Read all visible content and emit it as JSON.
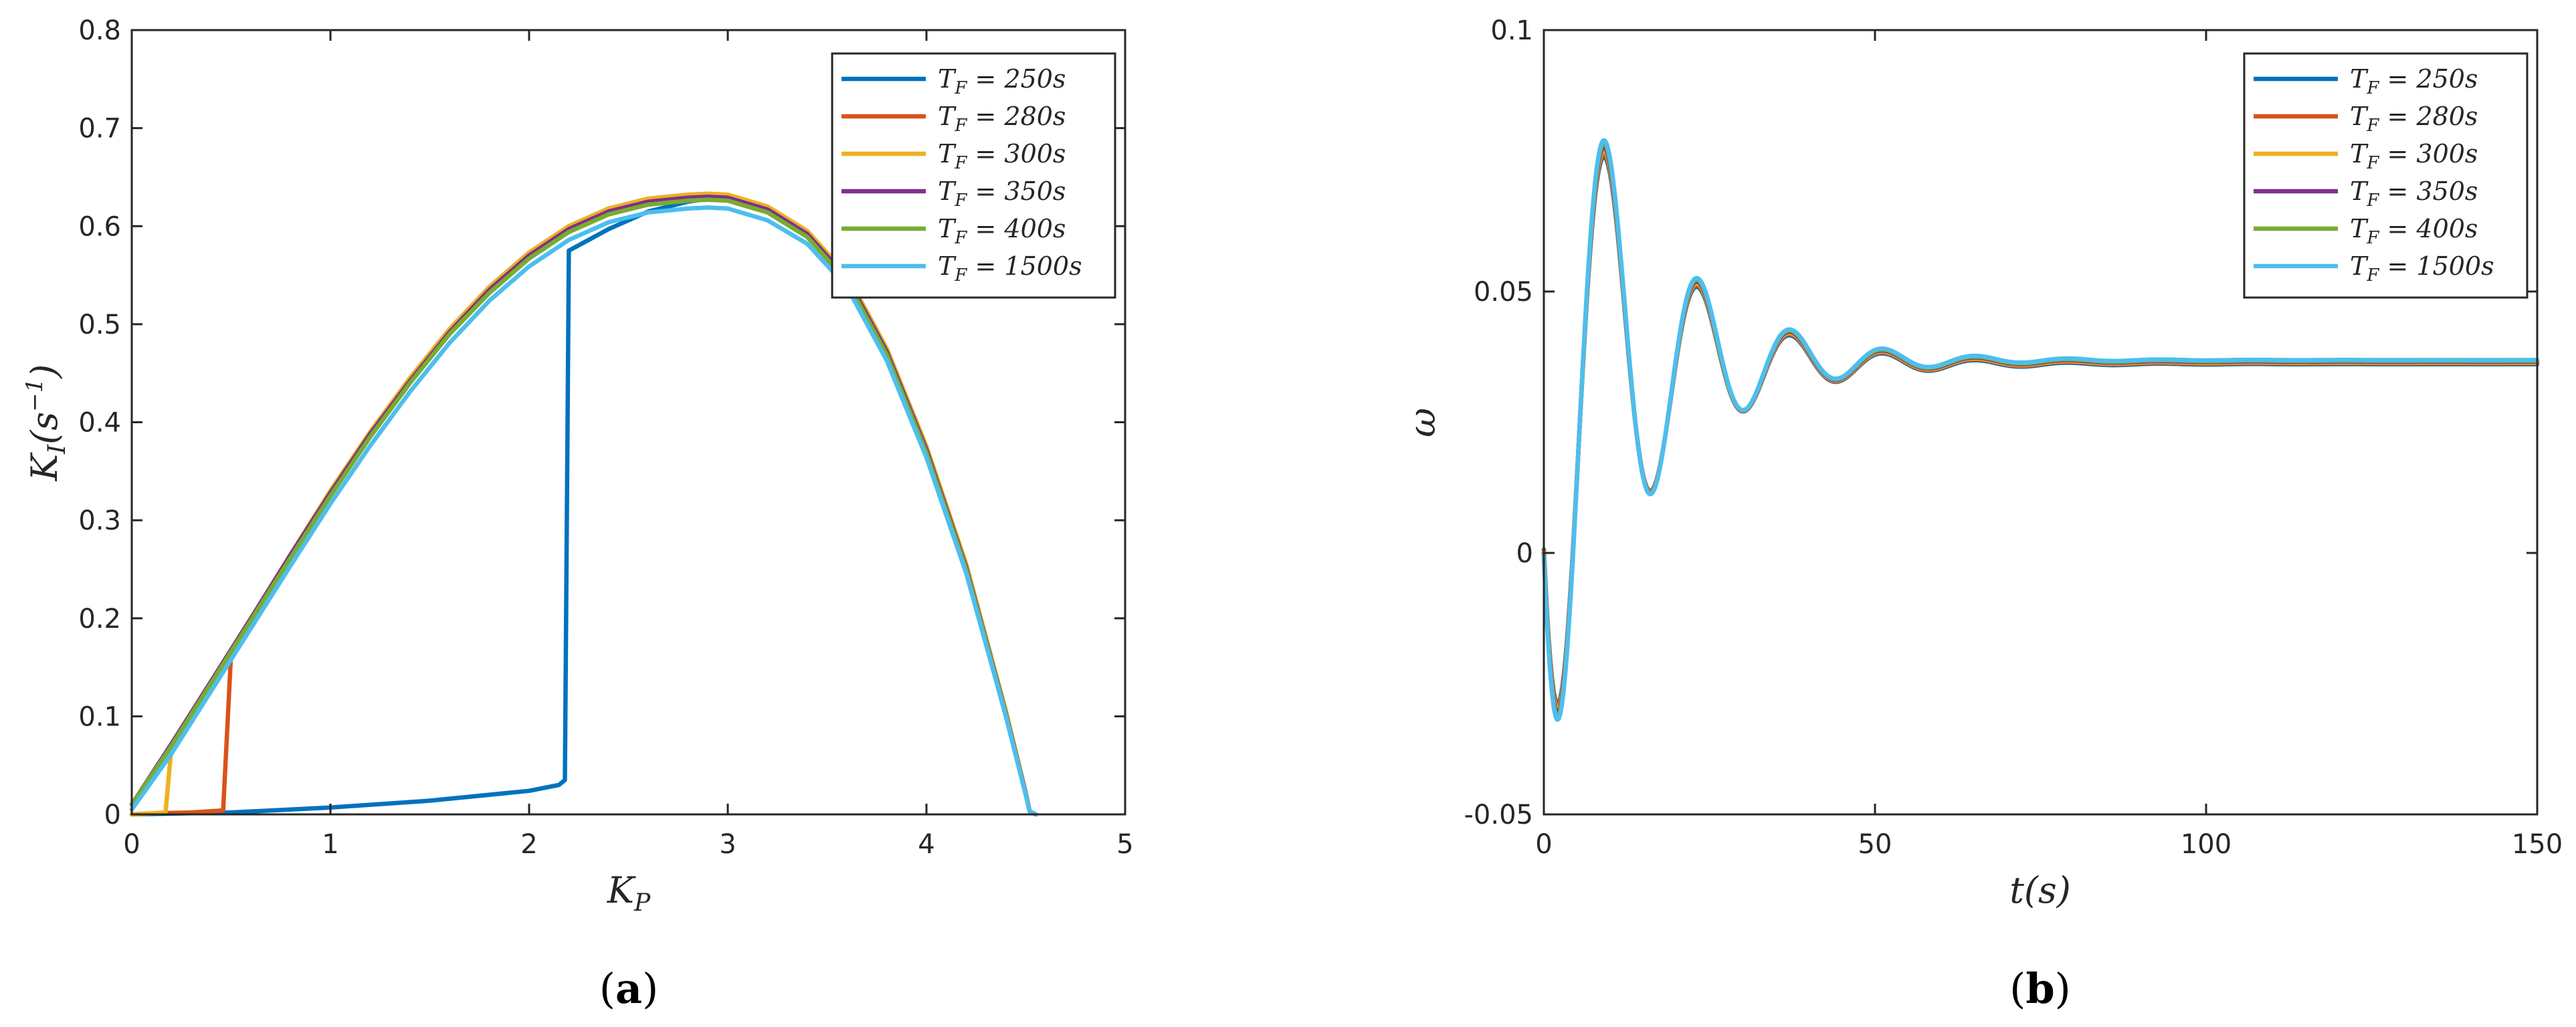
{
  "chart_data": [
    {
      "type": "line",
      "panel_label": "(a)",
      "xlabel": "K_P",
      "ylabel": "K_I(s^-1)",
      "xlim": [
        0,
        5
      ],
      "ylim": [
        0,
        0.8
      ],
      "xticks": [
        0,
        1,
        2,
        3,
        4,
        5
      ],
      "yticks": [
        0,
        0.1,
        0.2,
        0.3,
        0.4,
        0.5,
        0.6,
        0.7,
        0.8
      ],
      "xtick_labels": [
        "0",
        "1",
        "2",
        "3",
        "4",
        "5"
      ],
      "ytick_labels": [
        "0",
        "0.1",
        "0.2",
        "0.3",
        "0.4",
        "0.5",
        "0.6",
        "0.7",
        "0.8"
      ],
      "grid": false,
      "legend_position": "top-right",
      "series": [
        {
          "name": "T_F = 250s",
          "color": "#0072BD",
          "x": [
            0,
            0.5,
            1.0,
            1.5,
            2.0,
            2.15,
            2.18,
            2.2,
            2.4,
            2.6,
            2.8,
            2.9,
            3.0,
            3.2,
            3.4,
            3.6,
            3.8,
            4.0,
            4.2,
            4.4,
            4.5,
            4.52,
            4.55
          ],
          "y": [
            0,
            0.002,
            0.007,
            0.014,
            0.024,
            0.03,
            0.035,
            0.575,
            0.597,
            0.615,
            0.625,
            0.628,
            0.627,
            0.615,
            0.59,
            0.545,
            0.47,
            0.37,
            0.25,
            0.1,
            0.02,
            0.003,
            0
          ]
        },
        {
          "name": "T_F = 280s",
          "color": "#D95319",
          "x": [
            0,
            0.1,
            0.3,
            0.46,
            0.5,
            0.6,
            0.8,
            1.0,
            1.2,
            1.4,
            1.6,
            1.8,
            2.0,
            2.2,
            2.4,
            2.6,
            2.8,
            2.9,
            3.0,
            3.2,
            3.4,
            3.6,
            3.8,
            4.0,
            4.2,
            4.4,
            4.5,
            4.52,
            4.55
          ],
          "y": [
            0,
            0.001,
            0.002,
            0.004,
            0.165,
            0.2,
            0.265,
            0.33,
            0.39,
            0.445,
            0.495,
            0.538,
            0.573,
            0.6,
            0.618,
            0.628,
            0.632,
            0.633,
            0.632,
            0.62,
            0.595,
            0.55,
            0.475,
            0.375,
            0.255,
            0.105,
            0.022,
            0.003,
            0
          ]
        },
        {
          "name": "T_F = 300s",
          "color": "#EDB120",
          "x": [
            0,
            0.1,
            0.17,
            0.2,
            0.4,
            0.6,
            0.8,
            1.0,
            1.2,
            1.4,
            1.6,
            1.8,
            2.0,
            2.2,
            2.4,
            2.6,
            2.8,
            2.9,
            3.0,
            3.2,
            3.4,
            3.6,
            3.8,
            4.0,
            4.2,
            4.4,
            4.5,
            4.52,
            4.55
          ],
          "y": [
            0,
            0.001,
            0.002,
            0.07,
            0.135,
            0.2,
            0.265,
            0.33,
            0.39,
            0.445,
            0.495,
            0.538,
            0.573,
            0.6,
            0.618,
            0.628,
            0.632,
            0.633,
            0.632,
            0.62,
            0.595,
            0.55,
            0.475,
            0.375,
            0.255,
            0.105,
            0.022,
            0.003,
            0
          ]
        },
        {
          "name": "T_F = 350s",
          "color": "#7E2F8E",
          "x": [
            0,
            0.2,
            0.4,
            0.6,
            0.8,
            1.0,
            1.2,
            1.4,
            1.6,
            1.8,
            2.0,
            2.2,
            2.4,
            2.6,
            2.8,
            2.9,
            3.0,
            3.2,
            3.4,
            3.6,
            3.8,
            4.0,
            4.2,
            4.4,
            4.5,
            4.52,
            4.55
          ],
          "y": [
            0.01,
            0.072,
            0.136,
            0.2,
            0.265,
            0.328,
            0.388,
            0.442,
            0.492,
            0.535,
            0.57,
            0.597,
            0.615,
            0.625,
            0.629,
            0.63,
            0.629,
            0.617,
            0.592,
            0.547,
            0.472,
            0.372,
            0.252,
            0.103,
            0.021,
            0.003,
            0
          ]
        },
        {
          "name": "T_F = 400s",
          "color": "#77AC30",
          "x": [
            0,
            0.2,
            0.4,
            0.6,
            0.8,
            1.0,
            1.2,
            1.4,
            1.6,
            1.8,
            2.0,
            2.2,
            2.4,
            2.6,
            2.8,
            2.9,
            3.0,
            3.2,
            3.4,
            3.6,
            3.8,
            4.0,
            4.2,
            4.4,
            4.5,
            4.52,
            4.55
          ],
          "y": [
            0.01,
            0.07,
            0.134,
            0.198,
            0.262,
            0.325,
            0.385,
            0.44,
            0.49,
            0.532,
            0.567,
            0.594,
            0.612,
            0.622,
            0.626,
            0.627,
            0.626,
            0.614,
            0.589,
            0.544,
            0.469,
            0.369,
            0.25,
            0.102,
            0.02,
            0.003,
            0
          ]
        },
        {
          "name": "T_F = 1500s",
          "color": "#4DBEEE",
          "x": [
            0,
            0.2,
            0.4,
            0.6,
            0.8,
            1.0,
            1.2,
            1.4,
            1.6,
            1.8,
            2.0,
            2.2,
            2.4,
            2.6,
            2.8,
            2.9,
            3.0,
            3.2,
            3.4,
            3.6,
            3.8,
            4.0,
            4.2,
            4.4,
            4.5,
            4.52,
            4.55
          ],
          "y": [
            0.005,
            0.062,
            0.126,
            0.19,
            0.254,
            0.317,
            0.376,
            0.431,
            0.481,
            0.524,
            0.559,
            0.586,
            0.604,
            0.614,
            0.618,
            0.619,
            0.618,
            0.606,
            0.582,
            0.538,
            0.463,
            0.364,
            0.246,
            0.1,
            0.02,
            0.003,
            0
          ]
        }
      ]
    },
    {
      "type": "line",
      "panel_label": "(b)",
      "xlabel": "t(s)",
      "ylabel": "ω",
      "xlim": [
        0,
        150
      ],
      "ylim": [
        -0.05,
        0.1
      ],
      "xticks": [
        0,
        50,
        100,
        150
      ],
      "yticks": [
        -0.05,
        0,
        0.05,
        0.1
      ],
      "xtick_labels": [
        "0",
        "50",
        "100",
        "150"
      ],
      "ytick_labels": [
        "-0.05",
        "0",
        "0.05",
        "0.1"
      ],
      "grid": false,
      "legend_position": "top-right",
      "response_model": {
        "final_value": 0.0365,
        "final_value_spread": 0.0008,
        "decay_time_s": 14.2,
        "period_s": 14.0,
        "amplitude_spread": 0.003
      },
      "series": [
        {
          "name": "T_F = 250s",
          "color": "#0072BD"
        },
        {
          "name": "T_F = 280s",
          "color": "#D95319"
        },
        {
          "name": "T_F = 300s",
          "color": "#EDB120"
        },
        {
          "name": "T_F = 350s",
          "color": "#7E2F8E"
        },
        {
          "name": "T_F = 400s",
          "color": "#77AC30"
        },
        {
          "name": "T_F = 1500s",
          "color": "#4DBEEE"
        }
      ]
    }
  ]
}
